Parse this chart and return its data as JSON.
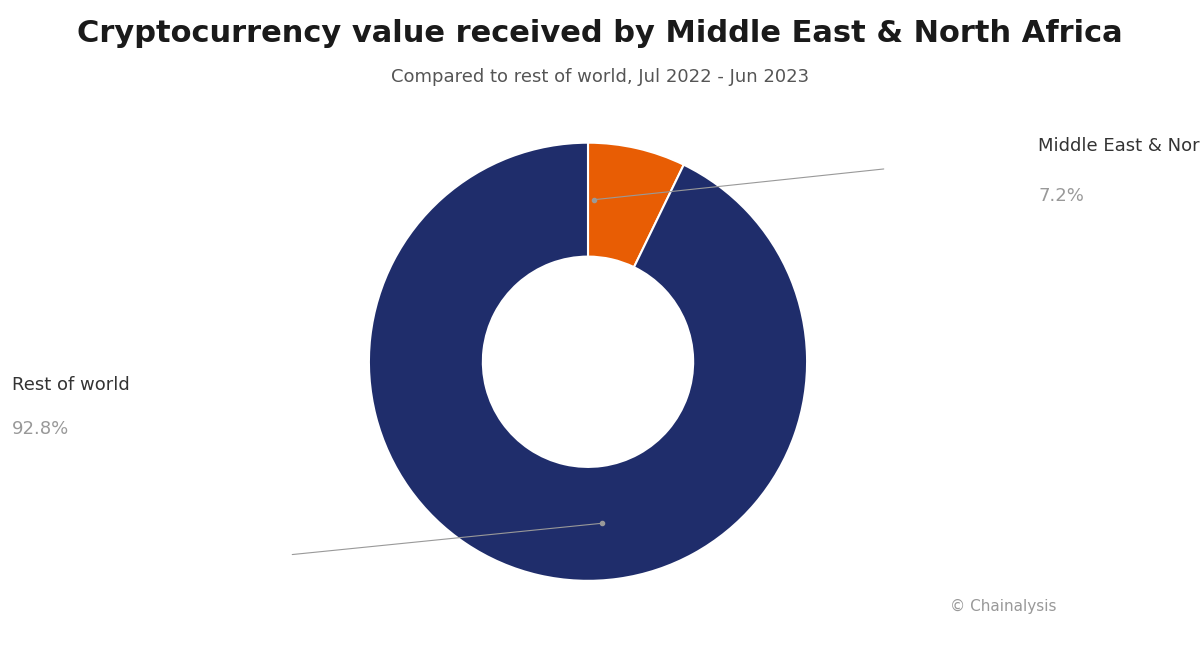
{
  "title": "Cryptocurrency value received by Middle East & North Africa",
  "subtitle": "Compared to rest of world, Jul 2022 - Jun 2023",
  "slices": [
    7.2,
    92.8
  ],
  "labels": [
    "Middle East & North Africa",
    "Rest of world"
  ],
  "percentages": [
    "7.2%",
    "92.8%"
  ],
  "colors": [
    "#E85D04",
    "#1F2D6B"
  ],
  "background_color": "#FFFFFF",
  "title_fontsize": 22,
  "subtitle_fontsize": 13,
  "label_fontsize": 13,
  "pct_fontsize": 13,
  "label_color": "#333333",
  "annotation_color": "#999999",
  "copyright_text": "© Chainalysis",
  "wedge_linewidth": 1.5,
  "wedge_edgecolor": "#FFFFFF",
  "startangle": 90,
  "donut_width": 0.52
}
